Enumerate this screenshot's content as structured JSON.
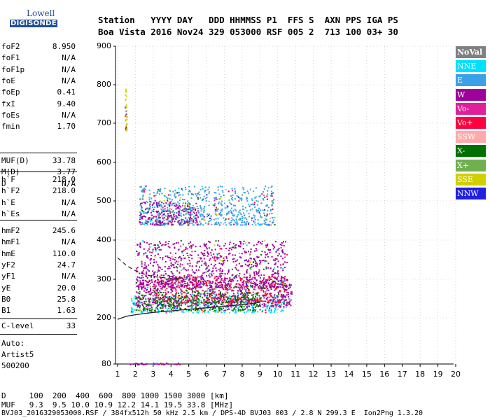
{
  "logo": {
    "line1": "Lowell",
    "line2": "DIGISONDE"
  },
  "header": {
    "row1": "Station   YYYY DAY   DDD HHMMSS P1  FFS S  AXN PPS IGA PS",
    "row2": "Boa Vista 2016 Nov24 329 053000 RSF 005 2  713 100 03+ 30"
  },
  "params": {
    "group1": [
      {
        "key": "foF2",
        "value": "8.950"
      },
      {
        "key": "foF1",
        "value": "N/A"
      },
      {
        "key": "foF1p",
        "value": "N/A"
      },
      {
        "key": "foE",
        "value": "N/A"
      },
      {
        "key": "foEp",
        "value": "0.41"
      },
      {
        "key": "fxI",
        "value": "9.40"
      },
      {
        "key": "foEs",
        "value": "N/A"
      },
      {
        "key": "fmin",
        "value": "1.70"
      }
    ],
    "group2": [
      {
        "key": "MUF(D)",
        "value": "33.78"
      },
      {
        "key": "M(D)",
        "value": "3.77"
      },
      {
        "key": "D",
        "value": "N/A"
      }
    ],
    "group3": [
      {
        "key": "h`F",
        "value": "218.0"
      },
      {
        "key": "h`F2",
        "value": "218.0"
      },
      {
        "key": "h`E",
        "value": "N/A"
      },
      {
        "key": "h`Es",
        "value": "N/A"
      }
    ],
    "group4": [
      {
        "key": "hmF2",
        "value": "245.6"
      },
      {
        "key": "hmF1",
        "value": "N/A"
      },
      {
        "key": "hmE",
        "value": "110.0"
      },
      {
        "key": "yF2",
        "value": "24.7"
      },
      {
        "key": "yF1",
        "value": "N/A"
      },
      {
        "key": "yE",
        "value": "20.0"
      },
      {
        "key": "B0",
        "value": "25.8"
      },
      {
        "key": "B1",
        "value": "1.63"
      }
    ],
    "clevel": {
      "key": "C-level",
      "value": "33"
    }
  },
  "auto": {
    "line1": "Auto:",
    "line2": "Artist5",
    "line3": "500200"
  },
  "footer": {
    "row_d": "D     100  200  400  600  800 1000 1500 3000 [km]",
    "row_muf": "MUF   9.3  9.5 10.0 10.9 12.2 14.1 19.5 33.8 [MHz]",
    "row_file": "BVJ03_2016329053000.RSF / 384fx512h 50 kHz 2.5 km / DPS-4D BVJ03 003 / 2.8 N 299.3 E  Ion2Png 1.3.20"
  },
  "legend": [
    {
      "label": "NoVal",
      "color": "#808080"
    },
    {
      "label": "NNE",
      "color": "#00e0ff"
    },
    {
      "label": "E",
      "color": "#3aa0e8"
    },
    {
      "label": "W",
      "color": "#a0009a"
    },
    {
      "label": "Vo-",
      "color": "#e0209a"
    },
    {
      "label": "Vo+",
      "color": "#ff0040"
    },
    {
      "label": "SSW",
      "color": "#ffaaaa"
    },
    {
      "label": "X-",
      "color": "#007000"
    },
    {
      "label": "X+",
      "color": "#70b050"
    },
    {
      "label": "SSE",
      "color": "#d0d000"
    },
    {
      "label": "NNW",
      "color": "#2020e0"
    }
  ],
  "chart_data": {
    "type": "scatter",
    "title": "",
    "xlabel": "",
    "ylabel": "",
    "xlim": [
      1,
      20
    ],
    "ylim": [
      80,
      900
    ],
    "x_ticks": [
      1,
      2,
      3,
      4,
      5,
      6,
      7,
      8,
      9,
      10,
      11,
      12,
      13,
      14,
      15,
      16,
      17,
      18,
      19,
      20
    ],
    "y_ticks": [
      80,
      200,
      300,
      400,
      500,
      600,
      700,
      800,
      900
    ],
    "clusters": [
      {
        "name": "F-trace lower band",
        "x_range": [
          1.7,
          10.5
        ],
        "y_range": [
          215,
          260
        ],
        "color": "#00e0ff"
      },
      {
        "name": "F-trace main",
        "x_range": [
          2.0,
          10.8
        ],
        "y_range": [
          230,
          300
        ],
        "color": "#a0009a"
      },
      {
        "name": "F-trace red",
        "x_range": [
          3.0,
          10.5
        ],
        "y_range": [
          240,
          310
        ],
        "color": "#ff0040"
      },
      {
        "name": "spread F",
        "x_range": [
          2.0,
          10.5
        ],
        "y_range": [
          280,
          400
        ],
        "color": "#a0009a"
      },
      {
        "name": "second hop",
        "x_range": [
          2.2,
          9.8
        ],
        "y_range": [
          440,
          540
        ],
        "color": "#3aa0e8"
      },
      {
        "name": "second hop W",
        "x_range": [
          2.2,
          5.5
        ],
        "y_range": [
          440,
          500
        ],
        "color": "#a0009a"
      },
      {
        "name": "X trace",
        "x_range": [
          2.0,
          9.0
        ],
        "y_range": [
          220,
          270
        ],
        "color": "#007000"
      },
      {
        "name": "SSE spike",
        "x_range": [
          1.4,
          1.5
        ],
        "y_range": [
          680,
          790
        ],
        "color": "#d0d000"
      },
      {
        "name": "bottom low",
        "x_range": [
          1.5,
          4.5
        ],
        "y_range": [
          80,
          84
        ],
        "color": "#a0009a"
      }
    ],
    "profile_curve": {
      "x": [
        1.0,
        1.5,
        2.0,
        3.0,
        4.0,
        5.0,
        6.0,
        7.0,
        8.0,
        9.0
      ],
      "y": [
        196,
        204,
        208,
        214,
        218,
        222,
        226,
        230,
        234,
        240
      ]
    },
    "upper_dashed_curve": {
      "x": [
        1.0,
        1.5,
        2.0,
        2.5,
        3.0,
        4.0,
        5.0
      ],
      "y": [
        355,
        335,
        322,
        313,
        307,
        302,
        300
      ]
    }
  }
}
